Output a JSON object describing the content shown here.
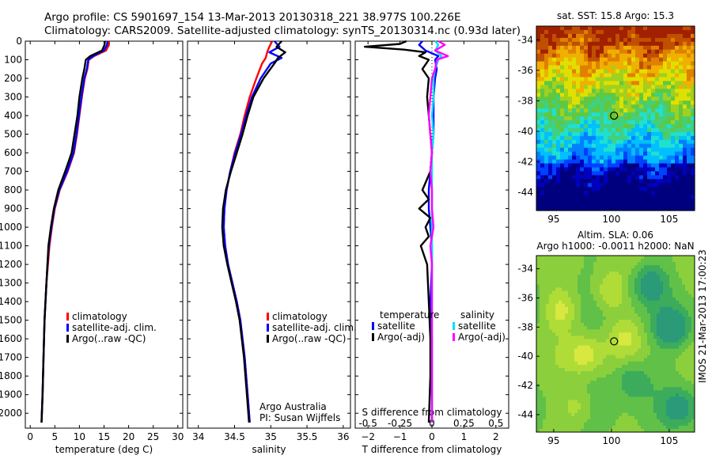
{
  "title_line1": "Argo profile: CS 5901697_154 13-Mar-2013 20130318_221 38.977S 100.226E",
  "title_line2": "Climatology: CARS2009. Satellite-adjusted climatology: synTS_20130314.nc (0.93d later)",
  "watermark": "IMOS 21-Mar-2013 17:00:23",
  "credit": [
    "Argo Australia",
    "PI: Susan Wijffels"
  ],
  "colors": {
    "climatology": "#ff0000",
    "satellite": "#0000ff",
    "argo": "#000000",
    "satellite_s": "#00e0ff",
    "argo_s": "#ff00ff"
  },
  "chart_data": [
    {
      "type": "line",
      "id": "temperature",
      "xlabel": "temperature (deg C)",
      "ylabel": "",
      "xlim": [
        -1,
        31
      ],
      "ylim": [
        2080,
        0
      ],
      "xticks": [
        0,
        5,
        10,
        15,
        20,
        25,
        30
      ],
      "yticks": [
        0,
        100,
        200,
        300,
        400,
        500,
        600,
        700,
        800,
        900,
        1000,
        1100,
        1200,
        1300,
        1400,
        1500,
        1600,
        1700,
        1800,
        1900,
        2000
      ],
      "legend": [
        "climatology",
        "satellite-adj. clim.",
        "Argo(..raw -QC)"
      ],
      "series": [
        {
          "name": "climatology",
          "color": "#ff0000",
          "depth": [
            0,
            20,
            50,
            80,
            100,
            150,
            200,
            300,
            400,
            500,
            600,
            700,
            800,
            900,
            1000,
            1100,
            1200,
            1300,
            1400,
            1500,
            1700,
            1900,
            2050
          ],
          "values": [
            16.0,
            16.0,
            15.4,
            13.0,
            11.9,
            11.6,
            11.1,
            10.5,
            10.0,
            9.5,
            8.9,
            7.6,
            6.0,
            5.0,
            4.4,
            3.9,
            3.6,
            3.3,
            3.1,
            2.9,
            2.7,
            2.5,
            2.3
          ]
        },
        {
          "name": "satellite-adj. clim.",
          "color": "#0000ff",
          "depth": [
            0,
            20,
            50,
            80,
            100,
            150,
            200,
            300,
            400,
            500,
            600,
            700,
            800,
            900,
            1000,
            1100,
            1200,
            1300,
            1400,
            1500,
            1700,
            1900,
            2050
          ],
          "values": [
            15.7,
            15.6,
            15.0,
            12.8,
            11.8,
            11.5,
            11.0,
            10.4,
            9.9,
            9.4,
            8.8,
            7.5,
            5.9,
            4.9,
            4.3,
            3.8,
            3.5,
            3.3,
            3.1,
            2.9,
            2.7,
            2.5,
            2.3
          ]
        },
        {
          "name": "Argo(..raw -QC)",
          "color": "#000000",
          "depth": [
            0,
            20,
            50,
            80,
            100,
            150,
            200,
            300,
            400,
            500,
            600,
            700,
            800,
            900,
            1000,
            1100,
            1200,
            1300,
            1400,
            1500,
            1700,
            1900,
            2050
          ],
          "values": [
            15.2,
            15.1,
            14.6,
            12.2,
            11.3,
            11.0,
            10.6,
            10.0,
            9.6,
            9.0,
            8.4,
            7.1,
            5.7,
            4.8,
            4.2,
            3.7,
            3.5,
            3.3,
            3.1,
            2.9,
            2.7,
            2.5,
            2.3
          ]
        }
      ]
    },
    {
      "type": "line",
      "id": "salinity",
      "xlabel": "salinity",
      "ylabel": "",
      "xlim": [
        33.85,
        36.1
      ],
      "ylim": [
        2080,
        0
      ],
      "xticks": [
        34,
        34.5,
        35,
        35.5,
        36
      ],
      "legend": [
        "climatology",
        "satellite-adj. clim.",
        "Argo(..raw -QC)"
      ],
      "series": [
        {
          "name": "climatology",
          "color": "#ff0000",
          "depth": [
            0,
            30,
            60,
            90,
            120,
            200,
            300,
            400,
            500,
            600,
            700,
            800,
            900,
            1000,
            1100,
            1200,
            1300,
            1400,
            1500,
            1700,
            1900,
            2050
          ],
          "values": [
            35.02,
            34.98,
            34.95,
            34.93,
            34.88,
            34.8,
            34.71,
            34.64,
            34.58,
            34.5,
            34.44,
            34.39,
            34.36,
            34.35,
            34.37,
            34.41,
            34.47,
            34.53,
            34.58,
            34.64,
            34.68,
            34.71
          ]
        },
        {
          "name": "satellite-adj. clim.",
          "color": "#0000ff",
          "depth": [
            0,
            30,
            60,
            90,
            120,
            200,
            300,
            400,
            500,
            600,
            700,
            800,
            900,
            1000,
            1100,
            1200,
            1300,
            1400,
            1500,
            1700,
            1900,
            2050
          ],
          "values": [
            35.05,
            35.12,
            34.98,
            35.15,
            35.0,
            34.86,
            34.74,
            34.66,
            34.59,
            34.51,
            34.44,
            34.39,
            34.36,
            34.35,
            34.37,
            34.41,
            34.47,
            34.53,
            34.58,
            34.64,
            34.68,
            34.71
          ]
        },
        {
          "name": "Argo(..raw -QC)",
          "color": "#000000",
          "depth": [
            0,
            30,
            60,
            90,
            120,
            200,
            300,
            400,
            500,
            600,
            700,
            800,
            900,
            1000,
            1100,
            1200,
            1300,
            1400,
            1500,
            1700,
            1900,
            2050
          ],
          "values": [
            35.15,
            35.08,
            35.2,
            35.1,
            35.05,
            34.9,
            34.76,
            34.68,
            34.61,
            34.53,
            34.45,
            34.38,
            34.34,
            34.33,
            34.35,
            34.4,
            34.46,
            34.52,
            34.57,
            34.63,
            34.67,
            34.7
          ]
        }
      ]
    },
    {
      "type": "line",
      "id": "difference",
      "xlabel": "T difference from climatology",
      "top_label": "S difference from climatology",
      "xlim": [
        -2.4,
        2.4
      ],
      "ylim": [
        2080,
        0
      ],
      "xticks": [
        -2,
        -1,
        0,
        1,
        2
      ],
      "top_ticks": [
        "-0.5",
        "-0.25",
        "0",
        "0.25",
        "0.5"
      ],
      "top_ticks_x": [
        -2,
        -1,
        0,
        1,
        2
      ],
      "legend_groups": [
        {
          "title": "temperature",
          "items": [
            "satellite",
            "Argo(-adj)"
          ]
        },
        {
          "title": "salinity",
          "items": [
            "satellite",
            "Argo(-adj)"
          ]
        }
      ],
      "series": [
        {
          "name": "satellite",
          "group": "temperature",
          "color": "#0000ff",
          "depth": [
            0,
            20,
            50,
            80,
            100,
            150,
            200,
            300,
            400,
            500,
            600,
            700,
            800,
            900,
            1000,
            1100,
            1200,
            1400,
            1600,
            1800,
            2050
          ],
          "values": [
            -0.3,
            -0.4,
            -0.2,
            0.2,
            0.1,
            0.15,
            0.1,
            0.05,
            0.05,
            0.05,
            0.0,
            -0.05,
            -0.1,
            -0.1,
            -0.05,
            0.0,
            0.0,
            -0.05,
            0.0,
            0.0,
            0.0
          ]
        },
        {
          "name": "Argo(-adj)",
          "group": "temperature",
          "color": "#000000",
          "depth": [
            0,
            15,
            30,
            45,
            60,
            80,
            100,
            150,
            200,
            300,
            400,
            500,
            600,
            700,
            800,
            850,
            900,
            950,
            1000,
            1050,
            1100,
            1200,
            1400,
            1600,
            1800,
            2050
          ],
          "values": [
            -0.8,
            -1.0,
            -2.1,
            -0.9,
            -0.2,
            -0.4,
            -0.1,
            -0.3,
            -0.1,
            -0.15,
            -0.1,
            -0.05,
            0.0,
            -0.05,
            -0.3,
            -0.1,
            -0.4,
            -0.05,
            -0.2,
            -0.1,
            -0.35,
            -0.15,
            -0.1,
            -0.05,
            -0.05,
            -0.1
          ]
        },
        {
          "name": "satellite",
          "group": "salinity",
          "color": "#00e0ff",
          "depth": [
            0,
            20,
            50,
            80,
            100,
            150,
            200,
            300,
            400,
            500,
            600,
            700,
            800,
            900,
            1000,
            1200,
            1400,
            1600,
            1800,
            2050
          ],
          "values": [
            0.1,
            0.2,
            0.1,
            0.3,
            0.2,
            0.1,
            0.05,
            0.05,
            0.0,
            0.05,
            0.0,
            0.0,
            0.0,
            0.0,
            0.0,
            0.0,
            0.0,
            0.0,
            0.0,
            0.0
          ]
        },
        {
          "name": "Argo(-adj)",
          "group": "salinity",
          "color": "#ff00ff",
          "depth": [
            0,
            20,
            50,
            80,
            100,
            150,
            200,
            300,
            400,
            500,
            600,
            700,
            800,
            900,
            1000,
            1100,
            1200,
            1400,
            1600,
            1800,
            2050
          ],
          "values": [
            0.2,
            0.4,
            0.1,
            0.5,
            0.15,
            0.1,
            0.0,
            -0.05,
            -0.1,
            -0.05,
            0.0,
            -0.05,
            0.0,
            0.0,
            0.05,
            -0.05,
            0.0,
            0.0,
            0.0,
            0.0,
            0.0
          ]
        }
      ]
    },
    {
      "type": "heatmap",
      "id": "sst_map",
      "title": "sat. SST: 15.8 Argo: 15.3",
      "xlim": [
        93.5,
        107.2
      ],
      "ylim": [
        -45.2,
        -33.1
      ],
      "xticks": [
        95,
        100,
        105
      ],
      "yticks": [
        -34,
        -36,
        -38,
        -40,
        -42,
        -44
      ],
      "marker": {
        "lon": 100.226,
        "lat": -38.977
      }
    },
    {
      "type": "heatmap",
      "id": "sla_map",
      "title_lines": [
        "Altim. SLA: 0.06",
        "Argo h1000: -0.0011 h2000: NaN"
      ],
      "xlim": [
        93.5,
        107.2
      ],
      "ylim": [
        -45.2,
        -33.1
      ],
      "xticks": [
        95,
        100,
        105
      ],
      "yticks": [
        -34,
        -36,
        -38,
        -40,
        -42,
        -44
      ],
      "marker": {
        "lon": 100.226,
        "lat": -38.977
      }
    }
  ]
}
